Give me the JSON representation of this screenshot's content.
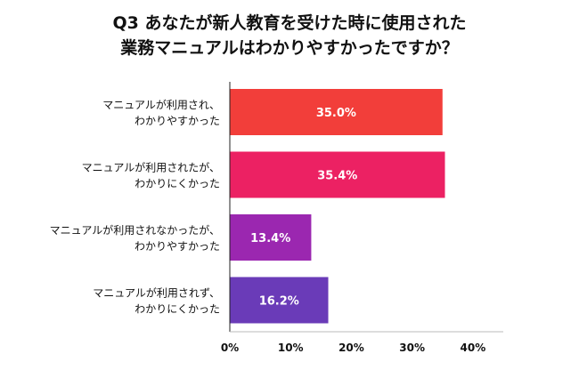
{
  "chart_data": {
    "type": "bar",
    "orientation": "horizontal",
    "title": [
      "Q3 あなたが新人教育を受けた時に使用された",
      "業務マニュアルはわかりやすかったですか？"
    ],
    "categories": [
      [
        "マニュアルが利用され、",
        "わかりやすかった"
      ],
      [
        "マニュアルが利用されたが、",
        "わかりにくかった"
      ],
      [
        "マニュアルが利用されなかったが、",
        "わかりやすかった"
      ],
      [
        "マニュアルが利用されず、",
        "わかりにくかった"
      ]
    ],
    "values": [
      35.0,
      35.4,
      13.4,
      16.2
    ],
    "value_labels": [
      "35.0%",
      "35.4%",
      "13.4%",
      "16.2%"
    ],
    "colors": [
      "#f23e3a",
      "#ec2163",
      "#9b27b0",
      "#6a3bb8"
    ],
    "xlim": [
      0,
      45
    ],
    "ticks": [
      0,
      10,
      20,
      30,
      40
    ],
    "tick_labels": [
      "0%",
      "10%",
      "20%",
      "30%",
      "40%"
    ],
    "grid": false,
    "legend": "none"
  }
}
